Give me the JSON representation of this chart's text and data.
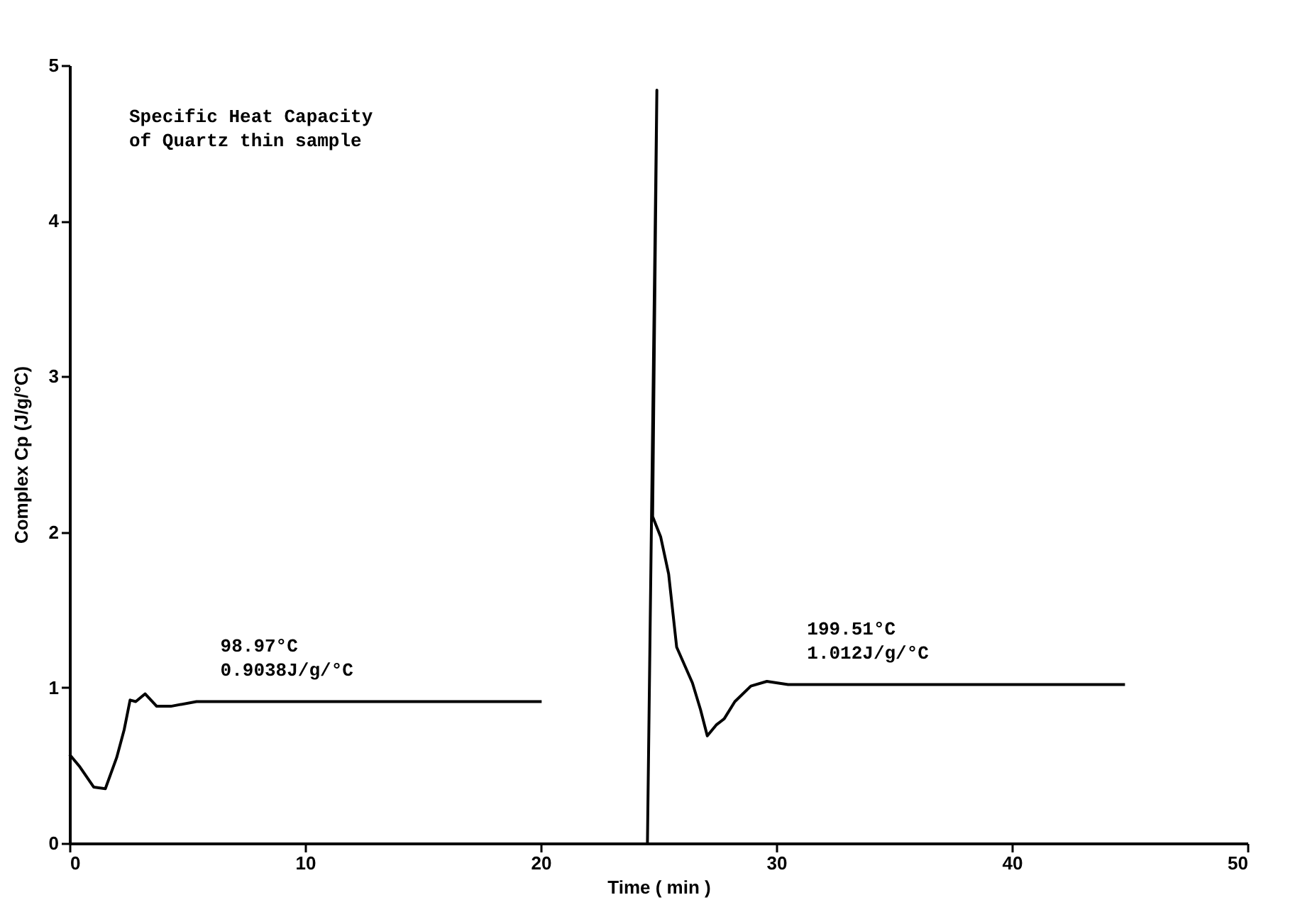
{
  "chart_data": {
    "type": "line",
    "xlabel": "Time ( min )",
    "ylabel": "Complex Cp (J/g/°C)",
    "xlim": [
      0,
      50
    ],
    "xticks": [
      0,
      10,
      20,
      30,
      40,
      50
    ],
    "ylim": [
      0,
      5
    ],
    "yticks": [
      0,
      1,
      2,
      3,
      4,
      5
    ],
    "grid": false,
    "line_style": "solid",
    "annotations": [
      "Specific Heat Capacity\nof Quartz thin sample",
      {
        "text": "98.97°C\n0.9038J/g/°C",
        "x": 10.5,
        "y": 0.9038
      },
      {
        "text": "199.51°C\n1.012J/g/°C",
        "x": 35.4,
        "y": 1.012
      }
    ],
    "series": [
      {
        "color": "#000000",
        "x": [
          0,
          0.44,
          1.03,
          1.52,
          2.0,
          2.32,
          2.57,
          2.81,
          3.21,
          3.7,
          4.3,
          5.39,
          10.5,
          20.04
        ],
        "values": [
          0.57,
          0.49,
          0.36,
          0.35,
          0.55,
          0.73,
          0.92,
          0.91,
          0.96,
          0.88,
          0.88,
          0.91,
          0.91,
          0.91
        ]
      },
      {
        "color": "#000000",
        "x": [
          24.53,
          24.93,
          24.75,
          25.09,
          25.43,
          25.77,
          26.44,
          26.78,
          27.07,
          27.45,
          27.79,
          28.24,
          28.92,
          29.6,
          30.5,
          35.4,
          44.8
        ],
        "values": [
          0,
          4.84,
          2.1,
          1.97,
          1.73,
          1.26,
          1.03,
          0.86,
          0.69,
          0.76,
          0.8,
          0.91,
          1.01,
          1.04,
          1.02,
          1.02,
          1.02
        ]
      }
    ]
  }
}
